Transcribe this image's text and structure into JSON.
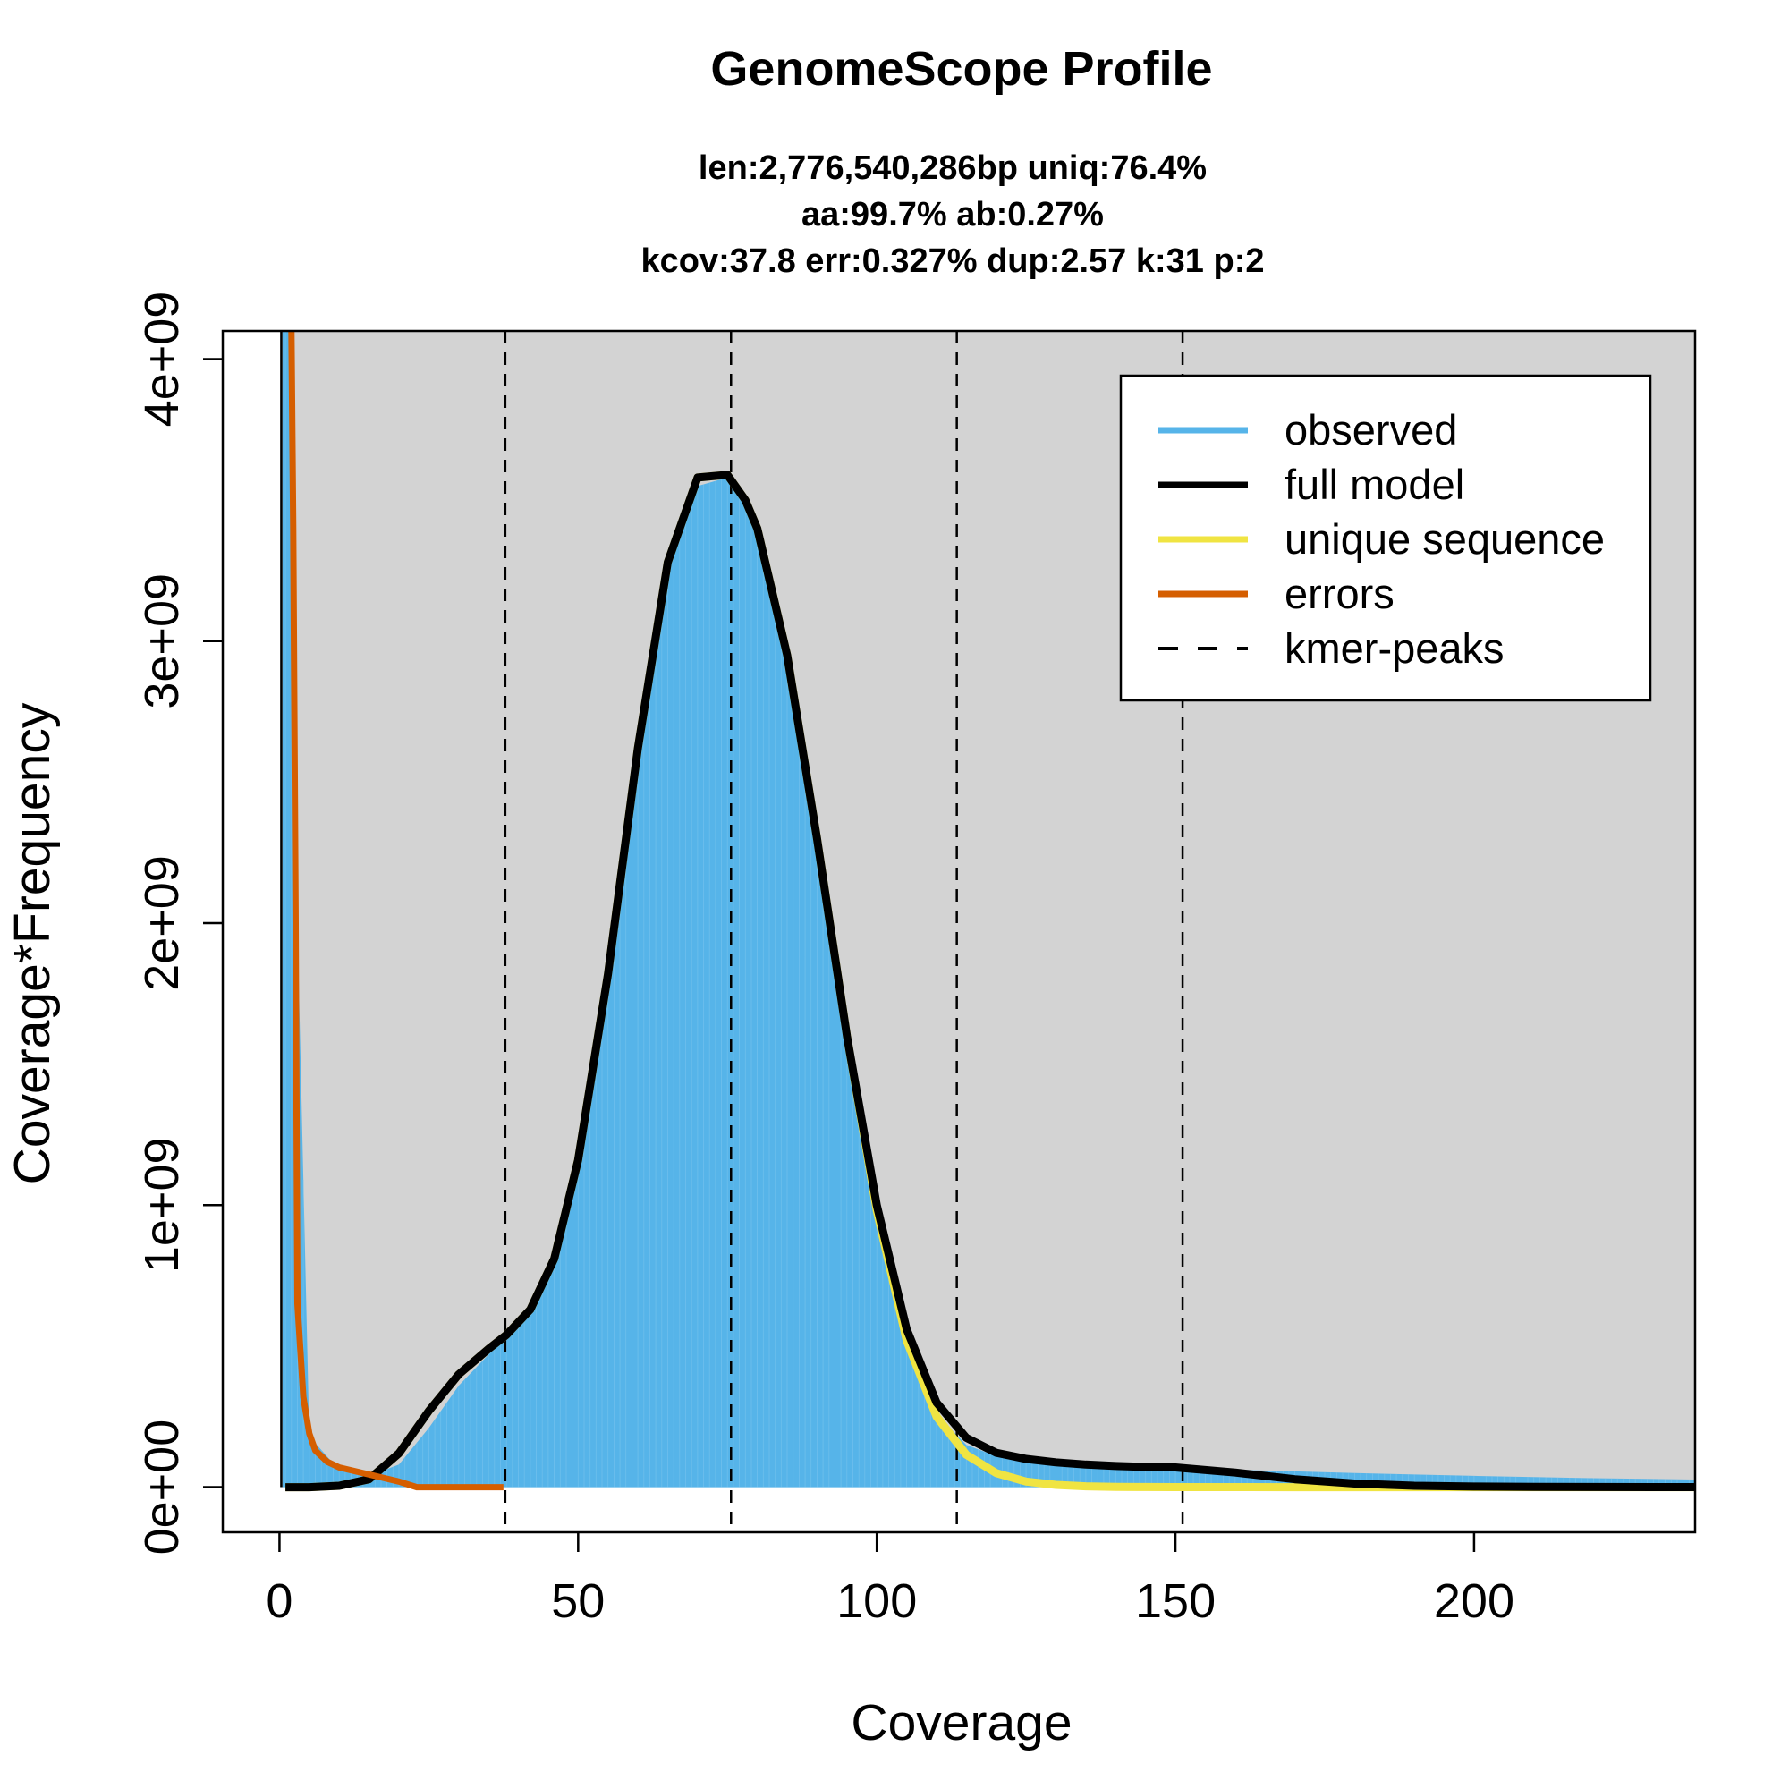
{
  "chart_data": {
    "type": "area",
    "title": "GenomeScope Profile",
    "subtitle_lines": [
      "len:2,776,540,286bp uniq:76.4%",
      "aa:99.7% ab:0.27%",
      "kcov:37.8 err:0.327%  dup:2.57  k:31 p:2"
    ],
    "xlabel": "Coverage",
    "ylabel": "Coverage*Frequency",
    "xlim": [
      -9.5,
      237
    ],
    "ylim": [
      -160000000.0,
      4100000000.0
    ],
    "x_ticks": [
      0,
      50,
      100,
      150,
      200
    ],
    "x_tick_labels": [
      "0",
      "50",
      "100",
      "150",
      "200"
    ],
    "y_ticks": [
      0,
      1000000000.0,
      2000000000.0,
      3000000000.0,
      4000000000.0
    ],
    "y_tick_labels": [
      "0e+00",
      "1e+09",
      "2e+09",
      "3e+09",
      "4e+09"
    ],
    "kmer_peaks": [
      37.8,
      75.6,
      113.4,
      151.2
    ],
    "colors": {
      "observed": "#56B4E9",
      "full_model": "#000000",
      "unique_sequence": "#F0E442",
      "errors": "#D55E00",
      "kmer_peaks": "#000000",
      "background": "#D3D3D3"
    },
    "legend": {
      "position": "top-right",
      "entries": [
        {
          "label": "observed",
          "color": "#56B4E9",
          "style": "solid"
        },
        {
          "label": "full model",
          "color": "#000000",
          "style": "solid"
        },
        {
          "label": "unique sequence",
          "color": "#F0E442",
          "style": "solid"
        },
        {
          "label": "errors",
          "color": "#D55E00",
          "style": "solid"
        },
        {
          "label": "kmer-peaks",
          "color": "#000000",
          "style": "dashed"
        }
      ]
    },
    "series": [
      {
        "name": "observed",
        "x": [
          0.5,
          1,
          2,
          3,
          5,
          10,
          15,
          20,
          25,
          30,
          35,
          38,
          42,
          46,
          50,
          55,
          60,
          65,
          70,
          75,
          78,
          80,
          85,
          90,
          95,
          100,
          105,
          110,
          115,
          120,
          125,
          130,
          135,
          140,
          145,
          150,
          160,
          170,
          180,
          190,
          200,
          210,
          220,
          230,
          237
        ],
        "y": [
          4100000000.0,
          4100000000.0,
          4100000000.0,
          2000000000.0,
          180000000.0,
          60000000.0,
          40000000.0,
          80000000.0,
          210000000.0,
          360000000.0,
          470000000.0,
          540000000.0,
          630000000.0,
          810000000.0,
          1150000000.0,
          1800000000.0,
          2600000000.0,
          3250000000.0,
          3550000000.0,
          3580000000.0,
          3500000000.0,
          3400000000.0,
          2950000000.0,
          2300000000.0,
          1600000000.0,
          980000000.0,
          520000000.0,
          260000000.0,
          150000000.0,
          110000000.0,
          90000000.0,
          80000000.0,
          75000000.0,
          72000000.0,
          70000000.0,
          68000000.0,
          62000000.0,
          56000000.0,
          50000000.0,
          45000000.0,
          40000000.0,
          36000000.0,
          32000000.0,
          29000000.0,
          27000000.0
        ]
      },
      {
        "name": "full model",
        "x": [
          1,
          5,
          10,
          15,
          20,
          25,
          30,
          35,
          38,
          42,
          46,
          50,
          55,
          60,
          65,
          70,
          75,
          78,
          80,
          85,
          90,
          95,
          100,
          105,
          110,
          115,
          120,
          125,
          130,
          135,
          140,
          145,
          150,
          160,
          170,
          180,
          190,
          200,
          210,
          220,
          230,
          237
        ],
        "y": [
          0,
          0,
          5000000.0,
          28000000.0,
          120000000.0,
          270000000.0,
          400000000.0,
          490000000.0,
          540000000.0,
          630000000.0,
          810000000.0,
          1160000000.0,
          1820000000.0,
          2620000000.0,
          3280000000.0,
          3580000000.0,
          3590000000.0,
          3500000000.0,
          3400000000.0,
          2950000000.0,
          2300000000.0,
          1600000000.0,
          1000000000.0,
          560000000.0,
          300000000.0,
          175000000.0,
          122000000.0,
          100000000.0,
          88000000.0,
          80000000.0,
          75000000.0,
          72000000.0,
          70000000.0,
          52000000.0,
          28000000.0,
          13000000.0,
          5000000.0,
          2000000.0,
          1000000.0,
          500000.0,
          200000.0,
          100000.0
        ]
      },
      {
        "name": "unique sequence",
        "x": [
          1,
          5,
          10,
          15,
          20,
          25,
          30,
          35,
          38,
          42,
          46,
          50,
          55,
          60,
          65,
          70,
          75,
          78,
          80,
          85,
          90,
          95,
          100,
          105,
          110,
          115,
          120,
          125,
          130,
          135,
          140,
          145,
          150,
          160,
          170,
          180,
          190,
          200,
          210,
          220,
          230,
          237
        ],
        "y": [
          0,
          0,
          5000000.0,
          28000000.0,
          120000000.0,
          270000000.0,
          400000000.0,
          490000000.0,
          540000000.0,
          630000000.0,
          810000000.0,
          1160000000.0,
          1820000000.0,
          2620000000.0,
          3280000000.0,
          3580000000.0,
          3590000000.0,
          3500000000.0,
          3400000000.0,
          2950000000.0,
          2300000000.0,
          1600000000.0,
          980000000.0,
          520000000.0,
          250000000.0,
          115000000.0,
          50000000.0,
          20000000.0,
          8000000.0,
          3000000.0,
          1000000.0,
          400000.0,
          200000.0,
          100000.0,
          0,
          0,
          0,
          0,
          0,
          0,
          0,
          0
        ]
      },
      {
        "name": "errors",
        "x": [
          2,
          2.3,
          2.7,
          3,
          4,
          5,
          6,
          8,
          10,
          15,
          20,
          23,
          30,
          37.5
        ],
        "y": [
          4100000000.0,
          3400000000.0,
          2000000000.0,
          650000000.0,
          320000000.0,
          190000000.0,
          130000000.0,
          90000000.0,
          70000000.0,
          45000000.0,
          20000000.0,
          0,
          0,
          0
        ]
      }
    ]
  }
}
